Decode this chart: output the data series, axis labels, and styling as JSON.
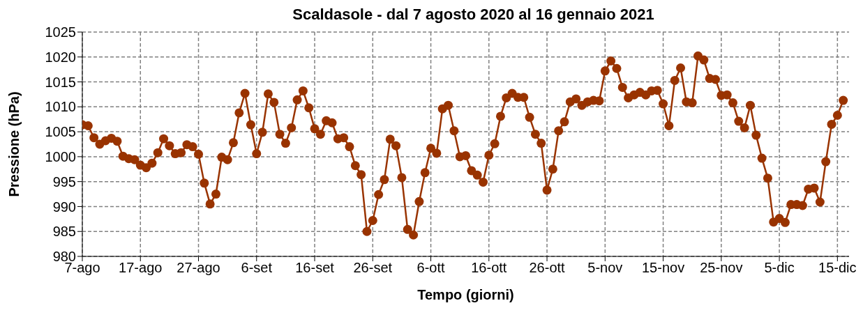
{
  "chart_data": {
    "type": "line",
    "title": "Scaldasole - dal 7 agosto 2020 al 16 gennaio 2021",
    "xlabel": "Tempo (giorni)",
    "ylabel": "Pressione (hPa)",
    "x": [
      "2020-08-07",
      "2020-08-08",
      "2020-08-09",
      "2020-08-10",
      "2020-08-11",
      "2020-08-12",
      "2020-08-13",
      "2020-08-14",
      "2020-08-15",
      "2020-08-16",
      "2020-08-17",
      "2020-08-18",
      "2020-08-19",
      "2020-08-20",
      "2020-08-21",
      "2020-08-22",
      "2020-08-23",
      "2020-08-24",
      "2020-08-25",
      "2020-08-26",
      "2020-08-27",
      "2020-08-28",
      "2020-08-29",
      "2020-08-30",
      "2020-08-31",
      "2020-09-01",
      "2020-09-02",
      "2020-09-03",
      "2020-09-04",
      "2020-09-05",
      "2020-09-06",
      "2020-09-07",
      "2020-09-08",
      "2020-09-09",
      "2020-09-10",
      "2020-09-11",
      "2020-09-12",
      "2020-09-13",
      "2020-09-14",
      "2020-09-15",
      "2020-09-16",
      "2020-09-17",
      "2020-09-18",
      "2020-09-19",
      "2020-09-20",
      "2020-09-21",
      "2020-09-22",
      "2020-09-23",
      "2020-09-24",
      "2020-09-25",
      "2020-09-26",
      "2020-09-27",
      "2020-09-28",
      "2020-09-29",
      "2020-09-30",
      "2020-10-01",
      "2020-10-02",
      "2020-10-03",
      "2020-10-04",
      "2020-10-05",
      "2020-10-06",
      "2020-10-07",
      "2020-10-08",
      "2020-10-09",
      "2020-10-10",
      "2020-10-11",
      "2020-10-12",
      "2020-10-13",
      "2020-10-14",
      "2020-10-15",
      "2020-10-16",
      "2020-10-17",
      "2020-10-18",
      "2020-10-19",
      "2020-10-20",
      "2020-10-21",
      "2020-10-22",
      "2020-10-23",
      "2020-10-24",
      "2020-10-25",
      "2020-10-26",
      "2020-10-27",
      "2020-10-28",
      "2020-10-29",
      "2020-10-30",
      "2020-10-31",
      "2020-11-01",
      "2020-11-02",
      "2020-11-03",
      "2020-11-04",
      "2020-11-05",
      "2020-11-06",
      "2020-11-07",
      "2020-11-08",
      "2020-11-09",
      "2020-11-10",
      "2020-11-11",
      "2020-11-12",
      "2020-11-13",
      "2020-11-14",
      "2020-11-15",
      "2020-11-16",
      "2020-11-17",
      "2020-11-18",
      "2020-11-19",
      "2020-11-20",
      "2020-11-21",
      "2020-11-22",
      "2020-11-23",
      "2020-11-24",
      "2020-11-25",
      "2020-11-26",
      "2020-11-27",
      "2020-11-28",
      "2020-11-29",
      "2020-11-30",
      "2020-12-01",
      "2020-12-02",
      "2020-12-03",
      "2020-12-04",
      "2020-12-05",
      "2020-12-06",
      "2020-12-07",
      "2020-12-08",
      "2020-12-09",
      "2020-12-10",
      "2020-12-11",
      "2020-12-12",
      "2020-12-13",
      "2020-12-14",
      "2020-12-15",
      "2020-12-16"
    ],
    "series": [
      {
        "color": "#993300",
        "values": [
          1006.4,
          1006.2,
          1003.8,
          1002.5,
          1003.2,
          1003.7,
          1003.1,
          1000.1,
          999.6,
          999.4,
          998.3,
          997.8,
          998.7,
          1000.8,
          1003.6,
          1002.2,
          1000.6,
          1000.8,
          1002.4,
          1002.0,
          1000.5,
          994.7,
          990.5,
          992.5,
          999.9,
          999.4,
          1002.8,
          1008.8,
          1012.7,
          1006.4,
          1000.6,
          1004.9,
          1012.6,
          1010.9,
          1004.5,
          1002.7,
          1005.8,
          1011.4,
          1013.2,
          1009.8,
          1005.6,
          1004.5,
          1007.2,
          1006.8,
          1003.6,
          1003.8,
          1002.0,
          998.2,
          996.4,
          985.0,
          987.2,
          992.4,
          995.4,
          1003.5,
          1002.2,
          995.8,
          985.4,
          984.3,
          991.0,
          996.8,
          1001.7,
          1000.7,
          1009.6,
          1010.3,
          1005.2,
          1000.0,
          1000.2,
          997.2,
          996.3,
          994.9,
          1000.3,
          1002.6,
          1008.1,
          1011.8,
          1012.7,
          1011.9,
          1011.9,
          1007.9,
          1004.5,
          1002.7,
          993.3,
          997.5,
          1005.2,
          1007.0,
          1011.0,
          1011.6,
          1010.3,
          1011.0,
          1011.3,
          1011.2,
          1017.2,
          1019.2,
          1017.7,
          1013.9,
          1011.8,
          1012.4,
          1012.9,
          1012.4,
          1013.2,
          1013.3,
          1010.6,
          1006.2,
          1015.3,
          1017.8,
          1011.0,
          1010.8,
          1020.2,
          1019.4,
          1015.7,
          1015.5,
          1012.3,
          1012.4,
          1010.8,
          1007.1,
          1005.8,
          1010.3,
          1004.3,
          999.7,
          995.7,
          986.9,
          987.6,
          986.8,
          990.4,
          990.4,
          990.2,
          993.5,
          993.7,
          990.9,
          999.0,
          1006.5,
          1008.3,
          1011.3
        ]
      }
    ],
    "xlim": [
      "2020-08-07",
      "2020-12-17"
    ],
    "xticks": [
      {
        "value": "2020-08-07",
        "label": "7-ago"
      },
      {
        "value": "2020-08-17",
        "label": "17-ago"
      },
      {
        "value": "2020-08-27",
        "label": "27-ago"
      },
      {
        "value": "2020-09-06",
        "label": "6-set"
      },
      {
        "value": "2020-09-16",
        "label": "16-set"
      },
      {
        "value": "2020-09-26",
        "label": "26-set"
      },
      {
        "value": "2020-10-06",
        "label": "6-ott"
      },
      {
        "value": "2020-10-16",
        "label": "16-ott"
      },
      {
        "value": "2020-10-26",
        "label": "26-ott"
      },
      {
        "value": "2020-11-05",
        "label": "5-nov"
      },
      {
        "value": "2020-11-15",
        "label": "15-nov"
      },
      {
        "value": "2020-11-25",
        "label": "25-nov"
      },
      {
        "value": "2020-12-05",
        "label": "5-dic"
      },
      {
        "value": "2020-12-15",
        "label": "15-dic"
      }
    ],
    "ylim": [
      980,
      1025
    ],
    "yticks": [
      980,
      985,
      990,
      995,
      1000,
      1005,
      1010,
      1015,
      1020,
      1025
    ],
    "grid": true,
    "marker": "circle",
    "line_style": "solid",
    "legend": false
  }
}
